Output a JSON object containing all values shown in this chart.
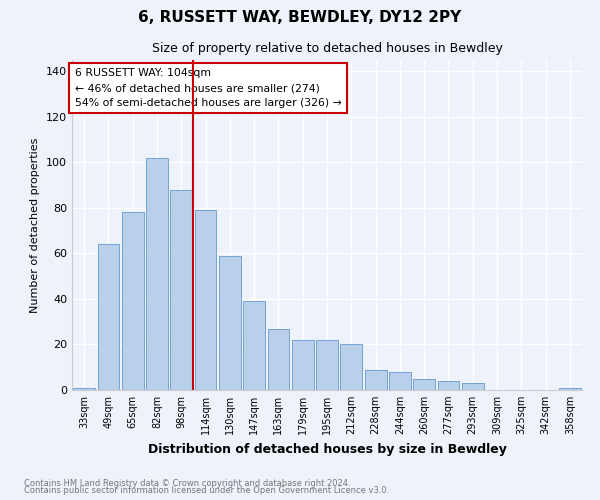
{
  "title": "6, RUSSETT WAY, BEWDLEY, DY12 2PY",
  "subtitle": "Size of property relative to detached houses in Bewdley",
  "xlabel": "Distribution of detached houses by size in Bewdley",
  "ylabel": "Number of detached properties",
  "categories": [
    "33sqm",
    "49sqm",
    "65sqm",
    "82sqm",
    "98sqm",
    "114sqm",
    "130sqm",
    "147sqm",
    "163sqm",
    "179sqm",
    "195sqm",
    "212sqm",
    "228sqm",
    "244sqm",
    "260sqm",
    "277sqm",
    "293sqm",
    "309sqm",
    "325sqm",
    "342sqm",
    "358sqm"
  ],
  "values": [
    1,
    64,
    78,
    102,
    88,
    79,
    59,
    39,
    27,
    22,
    22,
    20,
    9,
    8,
    5,
    4,
    3,
    0,
    0,
    0,
    1
  ],
  "bar_color": "#b8d0ea",
  "bar_edge_color": "#6699cc",
  "vline_color": "#cc0000",
  "annotation_box_color": "#cc0000",
  "annotation_text": "6 RUSSETT WAY: 104sqm\n← 46% of detached houses are smaller (274)\n54% of semi-detached houses are larger (326) →",
  "ylim": [
    0,
    145
  ],
  "yticks": [
    0,
    20,
    40,
    60,
    80,
    100,
    120,
    140
  ],
  "footer_line1": "Contains HM Land Registry data © Crown copyright and database right 2024.",
  "footer_line2": "Contains public sector information licensed under the Open Government Licence v3.0.",
  "background_color": "#eef2fa",
  "grid_color": "#ffffff"
}
